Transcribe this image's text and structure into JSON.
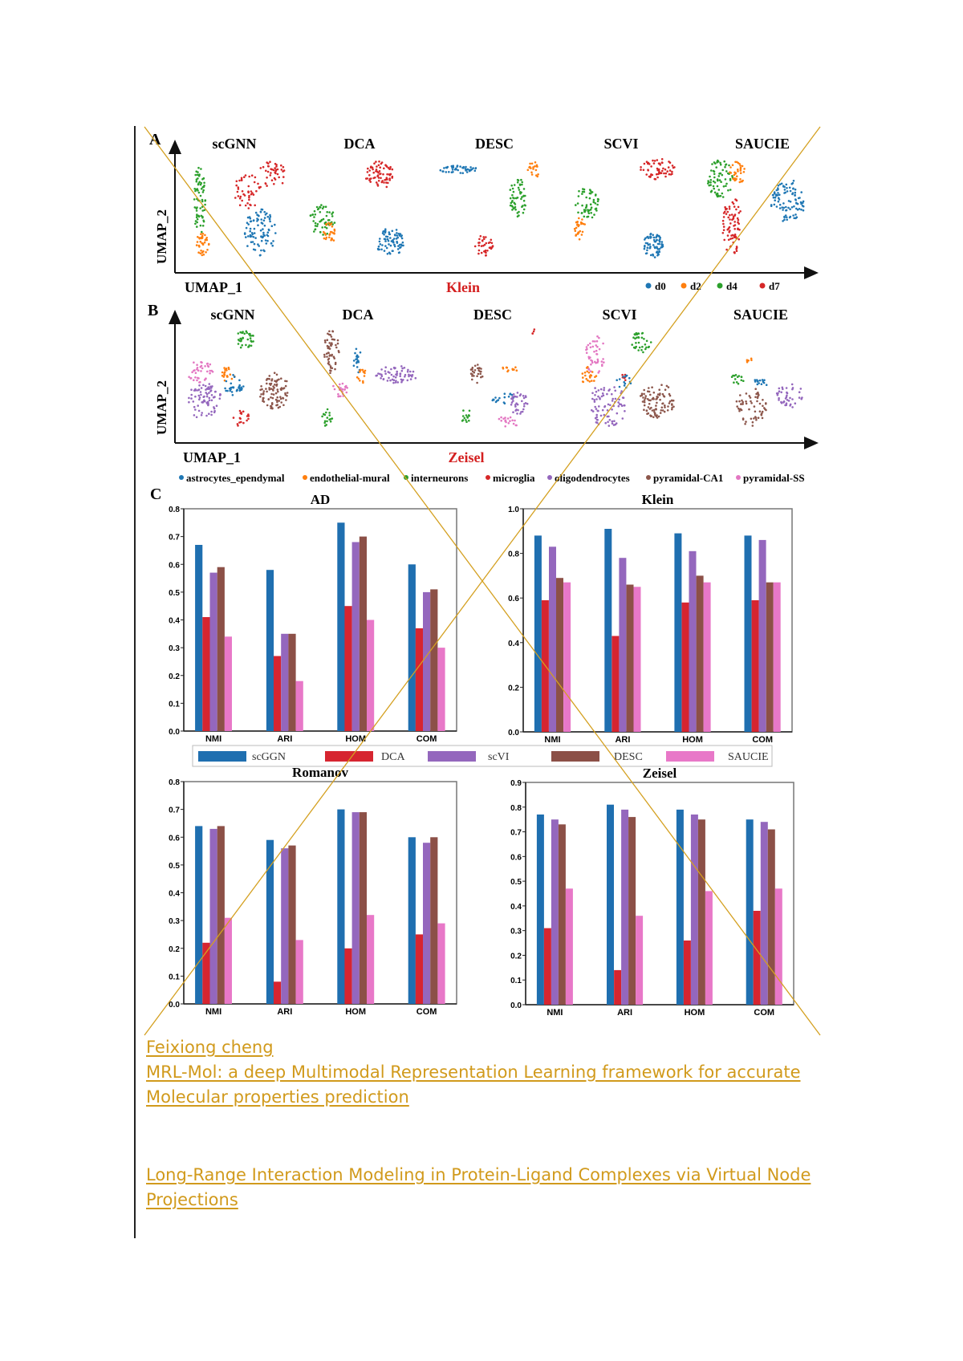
{
  "figure": {
    "panel_a": {
      "label": "A",
      "methods": [
        "scGNN",
        "DCA",
        "DESC",
        "SCVI",
        "SAUCIE"
      ],
      "xlabel": "UMAP_1",
      "ylabel": "UMAP_2",
      "dataset": "Klein",
      "legend": [
        {
          "label": "d0",
          "color": "#1f77b4"
        },
        {
          "label": "d2",
          "color": "#ff7f0e"
        },
        {
          "label": "d4",
          "color": "#2ca02c"
        },
        {
          "label": "d7",
          "color": "#d62728"
        }
      ]
    },
    "panel_b": {
      "label": "B",
      "methods": [
        "scGNN",
        "DCA",
        "DESC",
        "SCVI",
        "SAUCIE"
      ],
      "xlabel": "UMAP_1",
      "ylabel": "UMAP_2",
      "dataset": "Zeisel",
      "legend": [
        {
          "label": "astrocytes_ependymal",
          "color": "#1f77b4"
        },
        {
          "label": "endothelial-mural",
          "color": "#ff7f0e"
        },
        {
          "label": "interneurons",
          "color": "#2ca02c"
        },
        {
          "label": "microglia",
          "color": "#d62728"
        },
        {
          "label": "oligodendrocytes",
          "color": "#9467bd"
        },
        {
          "label": "pyramidal-CA1",
          "color": "#8c564b"
        },
        {
          "label": "pyramidal-SS",
          "color": "#e377c2"
        }
      ]
    },
    "panel_c": {
      "label": "C",
      "legend": [
        {
          "label": "scGGN",
          "color": "#1f6fb0"
        },
        {
          "label": "DCA",
          "color": "#d62530"
        },
        {
          "label": "scVI",
          "color": "#9467bd"
        },
        {
          "label": "DESC",
          "color": "#8c5047"
        },
        {
          "label": "SAUCIE",
          "color": "#e878c8"
        }
      ]
    }
  },
  "chart_data": [
    {
      "type": "bar",
      "title": "AD",
      "xlabel": "",
      "ylabel": "",
      "categories": [
        "NMI",
        "ARI",
        "HOM",
        "COM"
      ],
      "ylim": [
        0,
        0.8
      ],
      "yticks": [
        "0.0",
        "0.1",
        "0.2",
        "0.3",
        "0.4",
        "0.5",
        "0.6",
        "0.7",
        "0.8"
      ],
      "grid": false,
      "series": [
        {
          "name": "scGGN",
          "values": [
            0.67,
            0.58,
            0.75,
            0.6
          ]
        },
        {
          "name": "DCA",
          "values": [
            0.41,
            0.27,
            0.45,
            0.37
          ]
        },
        {
          "name": "scVI",
          "values": [
            0.57,
            0.35,
            0.68,
            0.5
          ]
        },
        {
          "name": "DESC",
          "values": [
            0.59,
            0.35,
            0.7,
            0.51
          ]
        },
        {
          "name": "SAUCIE",
          "values": [
            0.34,
            0.18,
            0.4,
            0.3
          ]
        }
      ]
    },
    {
      "type": "bar",
      "title": "Klein",
      "xlabel": "",
      "ylabel": "",
      "categories": [
        "NMI",
        "ARI",
        "HOM",
        "COM"
      ],
      "ylim": [
        0,
        1.0
      ],
      "yticks": [
        "0.0",
        "0.2",
        "0.4",
        "0.6",
        "0.8",
        "1.0"
      ],
      "grid": false,
      "series": [
        {
          "name": "scGGN",
          "values": [
            0.88,
            0.91,
            0.89,
            0.88
          ]
        },
        {
          "name": "DCA",
          "values": [
            0.59,
            0.43,
            0.58,
            0.59
          ]
        },
        {
          "name": "scVI",
          "values": [
            0.83,
            0.78,
            0.81,
            0.86
          ]
        },
        {
          "name": "DESC",
          "values": [
            0.69,
            0.66,
            0.7,
            0.67
          ]
        },
        {
          "name": "SAUCIE",
          "values": [
            0.67,
            0.65,
            0.67,
            0.67
          ]
        }
      ]
    },
    {
      "type": "bar",
      "title": "Romanov",
      "xlabel": "",
      "ylabel": "",
      "categories": [
        "NMI",
        "ARI",
        "HOM",
        "COM"
      ],
      "ylim": [
        0,
        0.8
      ],
      "yticks": [
        "0.0",
        "0.1",
        "0.2",
        "0.3",
        "0.4",
        "0.5",
        "0.6",
        "0.7",
        "0.8"
      ],
      "grid": false,
      "series": [
        {
          "name": "scGGN",
          "values": [
            0.64,
            0.59,
            0.7,
            0.6
          ]
        },
        {
          "name": "DCA",
          "values": [
            0.22,
            0.08,
            0.2,
            0.25
          ]
        },
        {
          "name": "scVI",
          "values": [
            0.63,
            0.56,
            0.69,
            0.58
          ]
        },
        {
          "name": "DESC",
          "values": [
            0.64,
            0.57,
            0.69,
            0.6
          ]
        },
        {
          "name": "SAUCIE",
          "values": [
            0.31,
            0.23,
            0.32,
            0.29
          ]
        }
      ]
    },
    {
      "type": "bar",
      "title": "Zeisel",
      "xlabel": "",
      "ylabel": "",
      "categories": [
        "NMI",
        "ARI",
        "HOM",
        "COM"
      ],
      "ylim": [
        0,
        0.9
      ],
      "yticks": [
        "0.0",
        "0.1",
        "0.2",
        "0.3",
        "0.4",
        "0.5",
        "0.6",
        "0.7",
        "0.8",
        "0.9"
      ],
      "grid": false,
      "series": [
        {
          "name": "scGGN",
          "values": [
            0.77,
            0.81,
            0.79,
            0.75
          ]
        },
        {
          "name": "DCA",
          "values": [
            0.31,
            0.14,
            0.26,
            0.38
          ]
        },
        {
          "name": "scVI",
          "values": [
            0.75,
            0.79,
            0.77,
            0.74
          ]
        },
        {
          "name": "DESC",
          "values": [
            0.73,
            0.76,
            0.75,
            0.71
          ]
        },
        {
          "name": "SAUCIE",
          "values": [
            0.47,
            0.36,
            0.46,
            0.47
          ]
        }
      ]
    }
  ],
  "links": {
    "author": "Feixiong cheng",
    "paper1_line1": "MRL-Mol: a deep Multimodal Representation Learning framework for accurate",
    "paper1_line2": "Molecular properties prediction",
    "paper2_line1": "Long-Range Interaction Modeling in Protein-Ligand Complexes via Virtual Node",
    "paper2_line2": "Projections"
  },
  "colors": {
    "link": "#d19a1c",
    "cross_lines": "#d4a020"
  }
}
